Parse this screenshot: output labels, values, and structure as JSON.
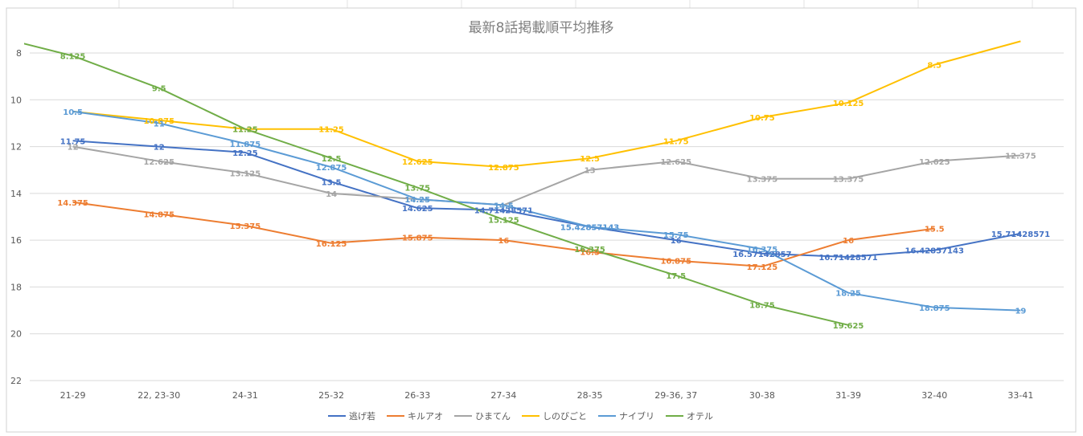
{
  "chart_data": {
    "type": "line",
    "title": "最新8話掲載順平均推移",
    "xlabel": "",
    "ylabel": "",
    "categories": [
      "21-29",
      "22, 23-30",
      "24-31",
      "25-32",
      "26-33",
      "27-34",
      "28-35",
      "29-36, 37",
      "30-38",
      "31-39",
      "32-40",
      "33-41"
    ],
    "y_axis": {
      "reversed": true,
      "min": 7,
      "max": 22,
      "ticks": [
        8,
        10,
        12,
        14,
        16,
        18,
        20,
        22
      ]
    },
    "grid": true,
    "legend_position": "bottom",
    "series": [
      {
        "name": "逃げ若",
        "color": "#4472c4",
        "values": [
          11.75,
          12,
          12.25,
          13.5,
          14.625,
          14.71428571,
          15.42857143,
          16,
          16.57142857,
          16.71428571,
          16.42857143,
          15.71428571
        ],
        "labels": [
          "11.75",
          "12",
          "12.25",
          "13.5",
          "14.625",
          "14.71428571",
          "15.42857143",
          "16",
          "16.57142857",
          "16.71428571",
          "16.42857143",
          "15.71428571"
        ]
      },
      {
        "name": "キルアオ",
        "color": "#ed7d31",
        "values": [
          14.375,
          14.875,
          15.375,
          16.125,
          15.875,
          16,
          16.5,
          16.875,
          17.125,
          16,
          15.5,
          null
        ],
        "labels": [
          "14.375",
          "14.875",
          "15.375",
          "16.125",
          "15.875",
          "16",
          "16.5",
          "16.875",
          "17.125",
          "16",
          "15.5",
          ""
        ]
      },
      {
        "name": "ひまてん",
        "color": "#a5a5a5",
        "values": [
          12,
          12.625,
          13.125,
          14,
          14.25,
          14.5,
          13,
          12.625,
          13.375,
          13.375,
          12.625,
          12.375
        ],
        "labels": [
          "12",
          "12.625",
          "13.125",
          "14",
          "14.25",
          "14.5",
          "13",
          "12.625",
          "13.375",
          "13.375",
          "12.625",
          "12.375"
        ]
      },
      {
        "name": "しのびごと",
        "color": "#ffc000",
        "values": [
          10.5,
          10.875,
          11.25,
          11.25,
          12.625,
          12.875,
          12.5,
          11.75,
          10.75,
          10.125,
          8.5,
          7.5
        ],
        "labels": [
          "",
          "10.875",
          "11.25",
          "11.25",
          "12.625",
          "12.875",
          "12.5",
          "11.75",
          "10.75",
          "10.125",
          "8.5",
          ""
        ]
      },
      {
        "name": "ナイブリ",
        "color": "#5b9bd5",
        "values": [
          10.5,
          11,
          11.875,
          12.875,
          14.25,
          14.5,
          15.42857143,
          15.75,
          16.375,
          18.25,
          18.875,
          19
        ],
        "labels": [
          "10.5",
          "11",
          "11.875",
          "12.875",
          "14.25",
          "14.5",
          "15.42857143",
          "15.75",
          "16.375",
          "18.25",
          "18.875",
          "19"
        ]
      },
      {
        "name": "オテル",
        "color": "#70ad47",
        "values": [
          7.2,
          8.125,
          9.5,
          11.25,
          12.5,
          13.75,
          15.125,
          16.375,
          17.5,
          18.75,
          19.625,
          null
        ],
        "labels": [
          "",
          "8.125",
          "9.5",
          "11.25",
          "12.5",
          "13.75",
          "15.125",
          "16.375",
          "17.5",
          "18.75",
          "19.625",
          ""
        ],
        "x_offset": 1
      }
    ]
  }
}
